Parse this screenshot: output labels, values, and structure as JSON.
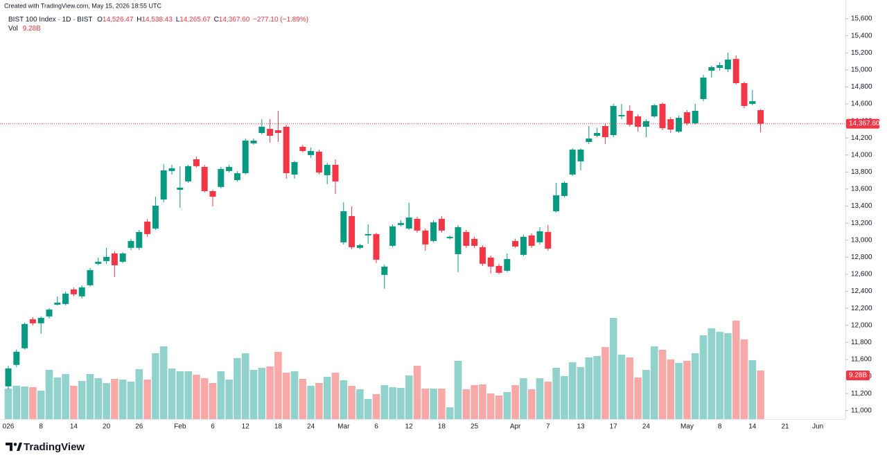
{
  "header": {
    "credit": "Created with TradingView.com, May 15, 2026 18:55 UTC"
  },
  "legend": {
    "symbol": "BIST 100 Index · 1D · BIST",
    "open_label": "O",
    "open": "14,526.47",
    "high_label": "H",
    "high": "14,538.43",
    "low_label": "L",
    "low": "14,265.67",
    "close_label": "C",
    "close": "14,367.60",
    "change": "−277.10 (−1.89%)",
    "volume_label": "Vol",
    "volume": "9.28B"
  },
  "footer": {
    "logo": "TradingView"
  },
  "chart_data": {
    "type": "candlestick",
    "up_color": "#089981",
    "down_color": "#f23645",
    "volume_up_color": "#92d2cc",
    "volume_down_color": "#f7a9a7",
    "grid": false,
    "categories": [
      "026",
      null,
      null,
      null,
      "8",
      null,
      null,
      null,
      "14",
      null,
      null,
      null,
      "20",
      null,
      null,
      null,
      "26",
      null,
      null,
      null,
      null,
      "Feb",
      null,
      null,
      null,
      "6",
      null,
      null,
      null,
      "12",
      null,
      null,
      null,
      "18",
      null,
      null,
      null,
      "24",
      null,
      null,
      null,
      "Mar",
      null,
      null,
      null,
      "6",
      null,
      null,
      null,
      "12",
      null,
      null,
      null,
      "18",
      null,
      null,
      null,
      "25",
      null,
      null,
      null,
      null,
      "Apr",
      null,
      null,
      null,
      "7",
      null,
      null,
      null,
      "13",
      null,
      null,
      null,
      "17",
      null,
      null,
      null,
      "24",
      null,
      null,
      null,
      null,
      "May",
      null,
      null,
      null,
      "8",
      null,
      null,
      null,
      "14",
      null,
      null,
      null,
      "21",
      null,
      null,
      null,
      "Jun"
    ],
    "open": [
      11284,
      11536,
      11731,
      12072,
      12024,
      12105,
      12243,
      12251,
      12422,
      12341,
      12471,
      12723,
      12755,
      12845,
      12747,
      12910,
      12910,
      13218,
      13137,
      13478,
      13812,
      13592,
      13690,
      13950,
      13860,
      13576,
      13625,
      13812,
      13706,
      13787,
      14137,
      14259,
      14307,
      14291,
      14332,
      13771,
      14096,
      13999,
      14039,
      13763,
      13885,
      12975,
      13283,
      12910,
      13056,
      13072,
      12593,
      12934,
      13178,
      13137,
      13251,
      13113,
      12991,
      13251,
      13023,
      12836,
      13096,
      13015,
      12918,
      12796,
      12698,
      12641,
      12991,
      12828,
      13056,
      12975,
      13096,
      13340,
      13519,
      13771,
      13925,
      14153,
      14226,
      14340,
      14234,
      14454,
      14519,
      14454,
      14332,
      14454,
      14600,
      14421,
      14275,
      14502,
      14372,
      14657,
      14990,
      15023,
      15006,
      15128,
      14844,
      14600,
      14526.47,
      null,
      null,
      null,
      null,
      null,
      null,
      null
    ],
    "high": [
      11528,
      11715,
      12032,
      12097,
      12105,
      12202,
      12341,
      12397,
      12446,
      12471,
      12673,
      12796,
      12910,
      12869,
      12861,
      13015,
      13121,
      13251,
      13511,
      13893,
      13885,
      13869,
      13885,
      13982,
      13885,
      13592,
      13860,
      13885,
      13812,
      14194,
      14194,
      14421,
      14421,
      14519,
      14356,
      13934,
      14121,
      14088,
      14063,
      13909,
      13950,
      13446,
      13397,
      12958,
      13186,
      13088,
      12714,
      13186,
      13235,
      13438,
      13275,
      13137,
      13235,
      13283,
      13056,
      13178,
      13121,
      13040,
      12942,
      12820,
      12723,
      12845,
      13015,
      13064,
      13080,
      13153,
      13178,
      13673,
      13690,
      14080,
      14080,
      14340,
      14316,
      14372,
      14600,
      14600,
      14584,
      14478,
      14421,
      14600,
      14616,
      14446,
      14462,
      14527,
      14600,
      14941,
      15047,
      15088,
      15201,
      15169,
      14860,
      14762,
      14538.43,
      null,
      null,
      null,
      null,
      null,
      null,
      null
    ],
    "low": [
      11252,
      11512,
      11715,
      11999,
      11902,
      12081,
      12235,
      12235,
      12341,
      12316,
      12455,
      12706,
      12723,
      12568,
      12731,
      12885,
      12885,
      13040,
      13121,
      13446,
      13771,
      13381,
      13673,
      13852,
      13560,
      13397,
      13608,
      13795,
      13690,
      13771,
      14121,
      14242,
      14145,
      14153,
      13722,
      13722,
      14031,
      13966,
      13771,
      13657,
      13543,
      12950,
      12893,
      12893,
      12958,
      12731,
      12430,
      12918,
      13162,
      13121,
      13088,
      12877,
      12975,
      13088,
      13007,
      12625,
      12910,
      12910,
      12698,
      12609,
      12601,
      12625,
      12910,
      12812,
      12910,
      12950,
      12877,
      13324,
      13503,
      13755,
      13820,
      14129,
      14210,
      14129,
      14210,
      14421,
      14332,
      14275,
      14210,
      14437,
      14291,
      14259,
      14259,
      14348,
      14356,
      14632,
      14909,
      14990,
      14974,
      14828,
      14551,
      14584,
      14265.67,
      null,
      null,
      null,
      null,
      null,
      null,
      null
    ],
    "close": [
      11495,
      11690,
      12016,
      12024,
      12089,
      12186,
      12267,
      12373,
      12365,
      12446,
      12649,
      12747,
      12804,
      12706,
      12845,
      12991,
      13096,
      13072,
      13405,
      13820,
      13844,
      13617,
      13869,
      13869,
      13576,
      13511,
      13836,
      13860,
      13787,
      14169,
      14169,
      14332,
      14226,
      14259,
      13787,
      13917,
      14047,
      14047,
      13795,
      13885,
      13690,
      13340,
      12918,
      12942,
      13072,
      12771,
      12690,
      13162,
      13202,
      13267,
      13113,
      12950,
      13210,
      13113,
      13040,
      13153,
      12934,
      12934,
      12723,
      12690,
      12617,
      12779,
      12926,
      13040,
      12934,
      13105,
      12901,
      13527,
      13673,
      14063,
      14063,
      14194,
      14259,
      14210,
      14576,
      14470,
      14356,
      14332,
      14397,
      14584,
      14316,
      14299,
      14437,
      14372,
      14519,
      14909,
      15031,
      15055,
      15120,
      14844,
      14576,
      14632,
      14367.6,
      null,
      null,
      null,
      null,
      null,
      null,
      null
    ],
    "volume": [
      5.83,
      6.37,
      6.23,
      6.1,
      5.44,
      9.41,
      7.96,
      8.62,
      6.37,
      7.29,
      8.62,
      7.82,
      6.9,
      7.69,
      7.56,
      7.16,
      9.55,
      7.56,
      12.6,
      13.92,
      9.68,
      9.15,
      9.15,
      8.49,
      7.82,
      6.9,
      9.15,
      7.56,
      11.67,
      12.6,
      9.41,
      9.81,
      10.08,
      12.86,
      8.88,
      9.15,
      7.69,
      6.37,
      6.9,
      8.09,
      8.88,
      7.43,
      6.37,
      5.7,
      3.85,
      4.77,
      6.5,
      6.1,
      5.97,
      8.35,
      10.21,
      5.83,
      5.83,
      5.83,
      2.25,
      11.14,
      5.7,
      6.5,
      6.63,
      4.91,
      4.51,
      5.17,
      6.5,
      7.82,
      5.7,
      7.82,
      7.16,
      9.81,
      8.22,
      10.87,
      9.95,
      11.8,
      12.07,
      13.79,
      19.36,
      12.33,
      11.8,
      7.96,
      9.41,
      13.92,
      13.26,
      11.4,
      10.74,
      11.14,
      12.6,
      16.04,
      17.37,
      16.71,
      16.44,
      18.83,
      15.25,
      11.27,
      9.28,
      null,
      null,
      null,
      null,
      null,
      null,
      null
    ],
    "ylim": [
      10900,
      15820
    ],
    "yticks": [
      {
        "value": 11000,
        "label": "11,000"
      },
      {
        "value": 11200,
        "label": "11,200"
      },
      {
        "value": 11400,
        "label": "11,400"
      },
      {
        "value": 11600,
        "label": "11,600"
      },
      {
        "value": 11800,
        "label": "11,800"
      },
      {
        "value": 12000,
        "label": "12,000"
      },
      {
        "value": 12200,
        "label": "12,200"
      },
      {
        "value": 12400,
        "label": "12,400"
      },
      {
        "value": 12600,
        "label": "12,600"
      },
      {
        "value": 12800,
        "label": "12,800"
      },
      {
        "value": 13000,
        "label": "13,000"
      },
      {
        "value": 13200,
        "label": "13,200"
      },
      {
        "value": 13400,
        "label": "13,400"
      },
      {
        "value": 13600,
        "label": "13,600"
      },
      {
        "value": 13800,
        "label": "13,800"
      },
      {
        "value": 14000,
        "label": "14,000"
      },
      {
        "value": 14200,
        "label": "14,200"
      },
      {
        "value": 14400,
        "label": "14,400"
      },
      {
        "value": 14600,
        "label": "14,600"
      },
      {
        "value": 14800,
        "label": "14,800"
      },
      {
        "value": 15000,
        "label": "15,000"
      },
      {
        "value": 15200,
        "label": "15,200"
      },
      {
        "value": 15400,
        "label": "15,400"
      },
      {
        "value": 15600,
        "label": "15,600"
      }
    ]
  }
}
